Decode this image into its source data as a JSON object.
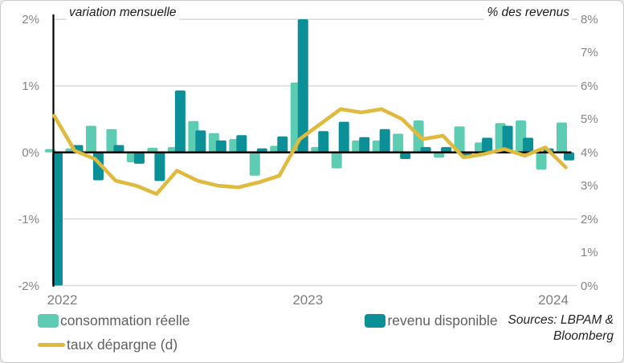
{
  "titles": {
    "left": "variation mensuelle",
    "right": "% des revenus"
  },
  "source": {
    "line1": "Sources: LBPAM &",
    "line2": "Bloomberg"
  },
  "legend": [
    {
      "label": "consommation réelle",
      "type": "bar",
      "color": "#5CCDB2"
    },
    {
      "label": "revenu disponible",
      "type": "bar",
      "color": "#0A9096"
    },
    {
      "label": "taux dépargne (d)",
      "type": "line",
      "color": "#DFBA3E"
    }
  ],
  "colors": {
    "grid": "#D9D9D9",
    "zero_line": "#000000",
    "axis_spine": "#000000",
    "tick_text": "#848484",
    "year_text": "#7E7E7E",
    "legend_text": "#606060"
  },
  "chart_data": {
    "type": "bar",
    "subtype": "grouped bars + line on secondary axis",
    "x": [
      "2022-01",
      "2022-02",
      "2022-03",
      "2022-04",
      "2022-05",
      "2022-06",
      "2022-07",
      "2022-08",
      "2022-09",
      "2022-10",
      "2022-11",
      "2022-12",
      "2023-01",
      "2023-02",
      "2023-03",
      "2023-04",
      "2023-05",
      "2023-06",
      "2023-07",
      "2023-08",
      "2023-09",
      "2023-10",
      "2023-11",
      "2023-12",
      "2024-01",
      "2024-02"
    ],
    "series": [
      {
        "name": "consommation réelle",
        "type": "bar",
        "axis": "left",
        "color": "#5CCDB2",
        "values": [
          0.05,
          0.06,
          0.4,
          0.35,
          -0.15,
          0.07,
          0.08,
          0.47,
          0.29,
          0.2,
          -0.35,
          0.1,
          1.05,
          0.08,
          -0.24,
          0.18,
          0.18,
          0.28,
          0.48,
          -0.08,
          0.39,
          0.15,
          0.44,
          0.48,
          -0.26,
          0.45
        ]
      },
      {
        "name": "revenu disponible",
        "type": "bar",
        "axis": "left",
        "color": "#0A9096",
        "values": [
          -2.0,
          0.11,
          -0.42,
          0.11,
          -0.17,
          -0.43,
          0.93,
          0.33,
          0.18,
          0.26,
          0.06,
          0.24,
          2.0,
          0.32,
          0.46,
          0.23,
          0.35,
          -0.1,
          0.08,
          0.08,
          -0.08,
          0.22,
          0.4,
          0.22,
          0.06,
          -0.12
        ]
      },
      {
        "name": "taux dépargne (d)",
        "type": "line",
        "axis": "right",
        "color": "#DFBA3E",
        "values": [
          5.1,
          4.05,
          3.8,
          3.15,
          3.0,
          2.75,
          3.45,
          3.15,
          3.0,
          2.95,
          3.1,
          3.3,
          4.4,
          4.85,
          5.3,
          5.2,
          5.3,
          5.0,
          4.4,
          4.5,
          3.85,
          3.95,
          4.1,
          3.9,
          4.15,
          3.55
        ]
      }
    ],
    "left_axis": {
      "title": "variation mensuelle",
      "min": -2,
      "max": 2,
      "ticks": [
        "2%",
        "1%",
        "0%",
        "-1%",
        "-2%"
      ],
      "tick_values": [
        2,
        1,
        0,
        -1,
        -2
      ]
    },
    "right_axis": {
      "title": "% des revenus",
      "min": 0,
      "max": 8,
      "ticks": [
        "8%",
        "7%",
        "6%",
        "5%",
        "4%",
        "3%",
        "2%",
        "1%",
        "0%"
      ],
      "tick_values": [
        8,
        7,
        6,
        5,
        4,
        3,
        2,
        1,
        0
      ]
    },
    "x_axis": {
      "tick_labels": [
        "2022",
        "2023",
        "2024"
      ],
      "tick_month_index": [
        0,
        12,
        24
      ]
    },
    "grid": true,
    "legend_position": "bottom-left",
    "clipped_bars_note": "revenu disponible 2023-01 drawn clipped at +2%, 2022-01 drawn clipped at -2%"
  }
}
